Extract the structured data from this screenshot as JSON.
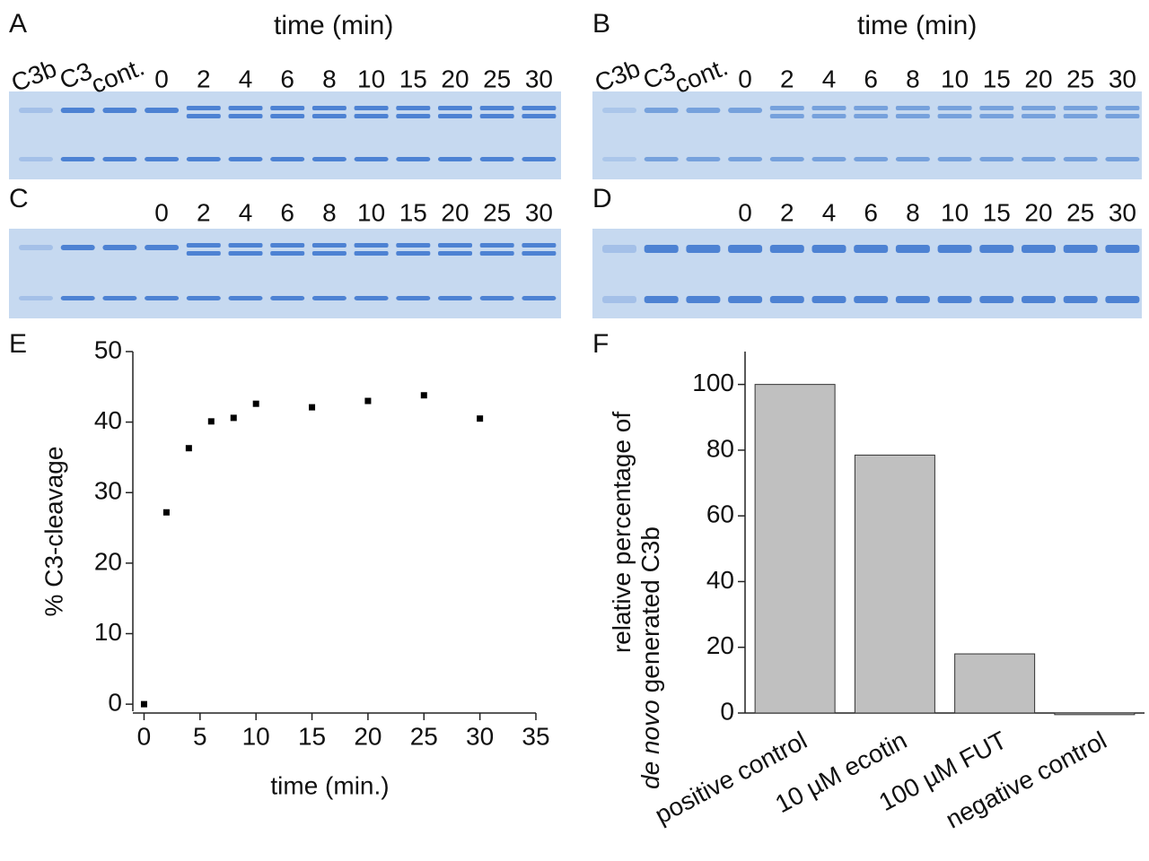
{
  "gels": [
    {
      "letter": "A",
      "header": "time (min)",
      "lanes": [
        "C3b",
        "C3",
        "cont.",
        "0",
        "2",
        "4",
        "6",
        "8",
        "10",
        "15",
        "20",
        "25",
        "30"
      ]
    },
    {
      "letter": "B",
      "header": "time (min)",
      "lanes": [
        "C3b",
        "C3",
        "cont.",
        "0",
        "2",
        "4",
        "6",
        "8",
        "10",
        "15",
        "20",
        "25",
        "30"
      ]
    },
    {
      "letter": "C",
      "lanes": [
        "0",
        "2",
        "4",
        "6",
        "8",
        "10",
        "15",
        "20",
        "25",
        "30"
      ]
    },
    {
      "letter": "D",
      "lanes": [
        "0",
        "2",
        "4",
        "6",
        "8",
        "10",
        "15",
        "20",
        "25",
        "30"
      ]
    }
  ],
  "chart_data": [
    {
      "type": "scatter",
      "label": "E",
      "xlabel": "time (min.)",
      "ylabel": "% C3-cleavage",
      "x": [
        0,
        2,
        4,
        6,
        8,
        10,
        15,
        20,
        25,
        30
      ],
      "values": [
        0,
        27.2,
        36.3,
        40.1,
        40.6,
        42.6,
        42.1,
        43,
        43.8,
        40.5
      ],
      "color": "#000000",
      "xlim": [
        -1,
        35
      ],
      "xticks": [
        0,
        5,
        10,
        15,
        20,
        25,
        30,
        35
      ],
      "ylim": [
        -1,
        50
      ],
      "yticks": [
        0,
        10,
        20,
        30,
        40,
        50
      ]
    },
    {
      "type": "bar",
      "label": "F",
      "ylabel": [
        "relative percentage of",
        "de novo",
        "generated C3b"
      ],
      "categories": [
        "positive control",
        "10 µM ecotin",
        "100 µM FUT",
        "negative control"
      ],
      "values": [
        100,
        78.5,
        18,
        -0.5
      ],
      "color": "#c0c0c0",
      "ylim": [
        0,
        110
      ],
      "yticks": [
        0,
        20,
        40,
        60,
        80,
        100
      ]
    }
  ]
}
